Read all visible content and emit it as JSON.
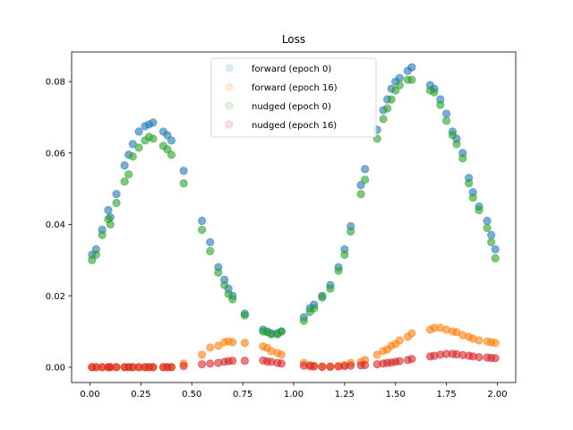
{
  "chart_data": {
    "type": "scatter",
    "title": "Loss",
    "xlabel": "",
    "ylabel": "",
    "xlim": [
      -0.09,
      2.09
    ],
    "ylim": [
      -0.0043,
      0.0883
    ],
    "xticks": [
      0.0,
      0.25,
      0.5,
      0.75,
      1.0,
      1.25,
      1.5,
      1.75,
      2.0
    ],
    "xtick_labels": [
      "0.00",
      "0.25",
      "0.50",
      "0.75",
      "1.00",
      "1.25",
      "1.50",
      "1.75",
      "2.00"
    ],
    "yticks": [
      0.0,
      0.02,
      0.04,
      0.06,
      0.08
    ],
    "ytick_labels": [
      "0.00",
      "0.02",
      "0.04",
      "0.06",
      "0.08"
    ],
    "grid": false,
    "legend_position": "top-center",
    "x": [
      0.01,
      0.03,
      0.06,
      0.09,
      0.1,
      0.13,
      0.17,
      0.19,
      0.21,
      0.24,
      0.27,
      0.29,
      0.31,
      0.36,
      0.38,
      0.4,
      0.46,
      0.55,
      0.59,
      0.63,
      0.66,
      0.68,
      0.7,
      0.76,
      0.85,
      0.87,
      0.89,
      0.92,
      0.94,
      1.05,
      1.08,
      1.1,
      1.14,
      1.18,
      1.22,
      1.25,
      1.28,
      1.33,
      1.35,
      1.41,
      1.44,
      1.46,
      1.48,
      1.5,
      1.52,
      1.56,
      1.58,
      1.67,
      1.69,
      1.72,
      1.75,
      1.78,
      1.8,
      1.83,
      1.86,
      1.88,
      1.91,
      1.95,
      1.97,
      1.99
    ],
    "series": [
      {
        "name": "forward (epoch 0)",
        "values": [
          0.0315,
          0.033,
          0.0385,
          0.044,
          0.042,
          0.0485,
          0.0565,
          0.0595,
          0.0625,
          0.066,
          0.0675,
          0.068,
          0.0685,
          0.066,
          0.065,
          0.0635,
          0.055,
          0.041,
          0.035,
          0.028,
          0.0245,
          0.022,
          0.02,
          0.015,
          0.0105,
          0.01,
          0.0095,
          0.0095,
          0.01,
          0.014,
          0.0165,
          0.0175,
          0.02,
          0.023,
          0.028,
          0.033,
          0.0395,
          0.051,
          0.0555,
          0.0665,
          0.072,
          0.075,
          0.078,
          0.08,
          0.081,
          0.083,
          0.084,
          0.079,
          0.078,
          0.075,
          0.071,
          0.066,
          0.064,
          0.06,
          0.053,
          0.049,
          0.045,
          0.041,
          0.037,
          0.033
        ]
      },
      {
        "name": "forward (epoch 16)",
        "values": [
          0.0,
          0.0,
          0.0,
          0.0,
          0.0,
          0.0,
          0.0,
          0.0,
          0.0,
          0.0,
          0.0,
          0.0,
          0.0,
          0.0,
          0.0,
          0.0,
          0.001,
          0.0035,
          0.0055,
          0.006,
          0.007,
          0.0072,
          0.007,
          0.0068,
          0.0058,
          0.0054,
          0.0045,
          0.004,
          0.0035,
          0.0012,
          0.0006,
          0.0004,
          0.0002,
          0.0002,
          0.0003,
          0.0006,
          0.0012,
          0.0015,
          0.002,
          0.0035,
          0.0045,
          0.005,
          0.006,
          0.0065,
          0.0075,
          0.0085,
          0.0095,
          0.0105,
          0.011,
          0.011,
          0.0105,
          0.01,
          0.0098,
          0.009,
          0.0085,
          0.008,
          0.0075,
          0.0072,
          0.007,
          0.0068
        ]
      },
      {
        "name": "nudged (epoch 0)",
        "values": [
          0.03,
          0.0315,
          0.037,
          0.0415,
          0.04,
          0.046,
          0.052,
          0.054,
          0.059,
          0.0615,
          0.0635,
          0.0645,
          0.064,
          0.062,
          0.061,
          0.0595,
          0.0515,
          0.0385,
          0.0325,
          0.0265,
          0.023,
          0.0205,
          0.019,
          0.0145,
          0.01,
          0.0098,
          0.0092,
          0.0092,
          0.01,
          0.013,
          0.0155,
          0.0165,
          0.0195,
          0.022,
          0.027,
          0.0315,
          0.038,
          0.0485,
          0.0525,
          0.064,
          0.0695,
          0.0725,
          0.075,
          0.0775,
          0.079,
          0.0805,
          0.0805,
          0.0775,
          0.077,
          0.0735,
          0.069,
          0.065,
          0.0625,
          0.0585,
          0.0515,
          0.0475,
          0.044,
          0.039,
          0.035,
          0.0305
        ]
      },
      {
        "name": "nudged (epoch 16)",
        "values": [
          0.0,
          0.0,
          0.0,
          0.0,
          0.0,
          0.0,
          0.0,
          0.0,
          0.0,
          0.0,
          0.0,
          0.0,
          0.0,
          0.0,
          0.0,
          0.0,
          0.0003,
          0.0008,
          0.001,
          0.0012,
          0.0015,
          0.0017,
          0.0018,
          0.0018,
          0.0019,
          0.0016,
          0.0015,
          0.0012,
          0.001,
          0.0004,
          0.0003,
          0.0002,
          0.0001,
          0.0001,
          0.0002,
          0.0003,
          0.0004,
          0.0005,
          0.0006,
          0.0008,
          0.001,
          0.0012,
          0.0013,
          0.0015,
          0.0017,
          0.002,
          0.0023,
          0.003,
          0.0032,
          0.0035,
          0.0037,
          0.0037,
          0.0036,
          0.0034,
          0.0032,
          0.003,
          0.0028,
          0.0027,
          0.0026,
          0.0025
        ]
      }
    ],
    "colors": [
      "#1f77b4",
      "#ff7f0e",
      "#2ca02c",
      "#d62728"
    ],
    "marker_opacity": 0.6,
    "legend_marker_opacity": 0.15
  }
}
